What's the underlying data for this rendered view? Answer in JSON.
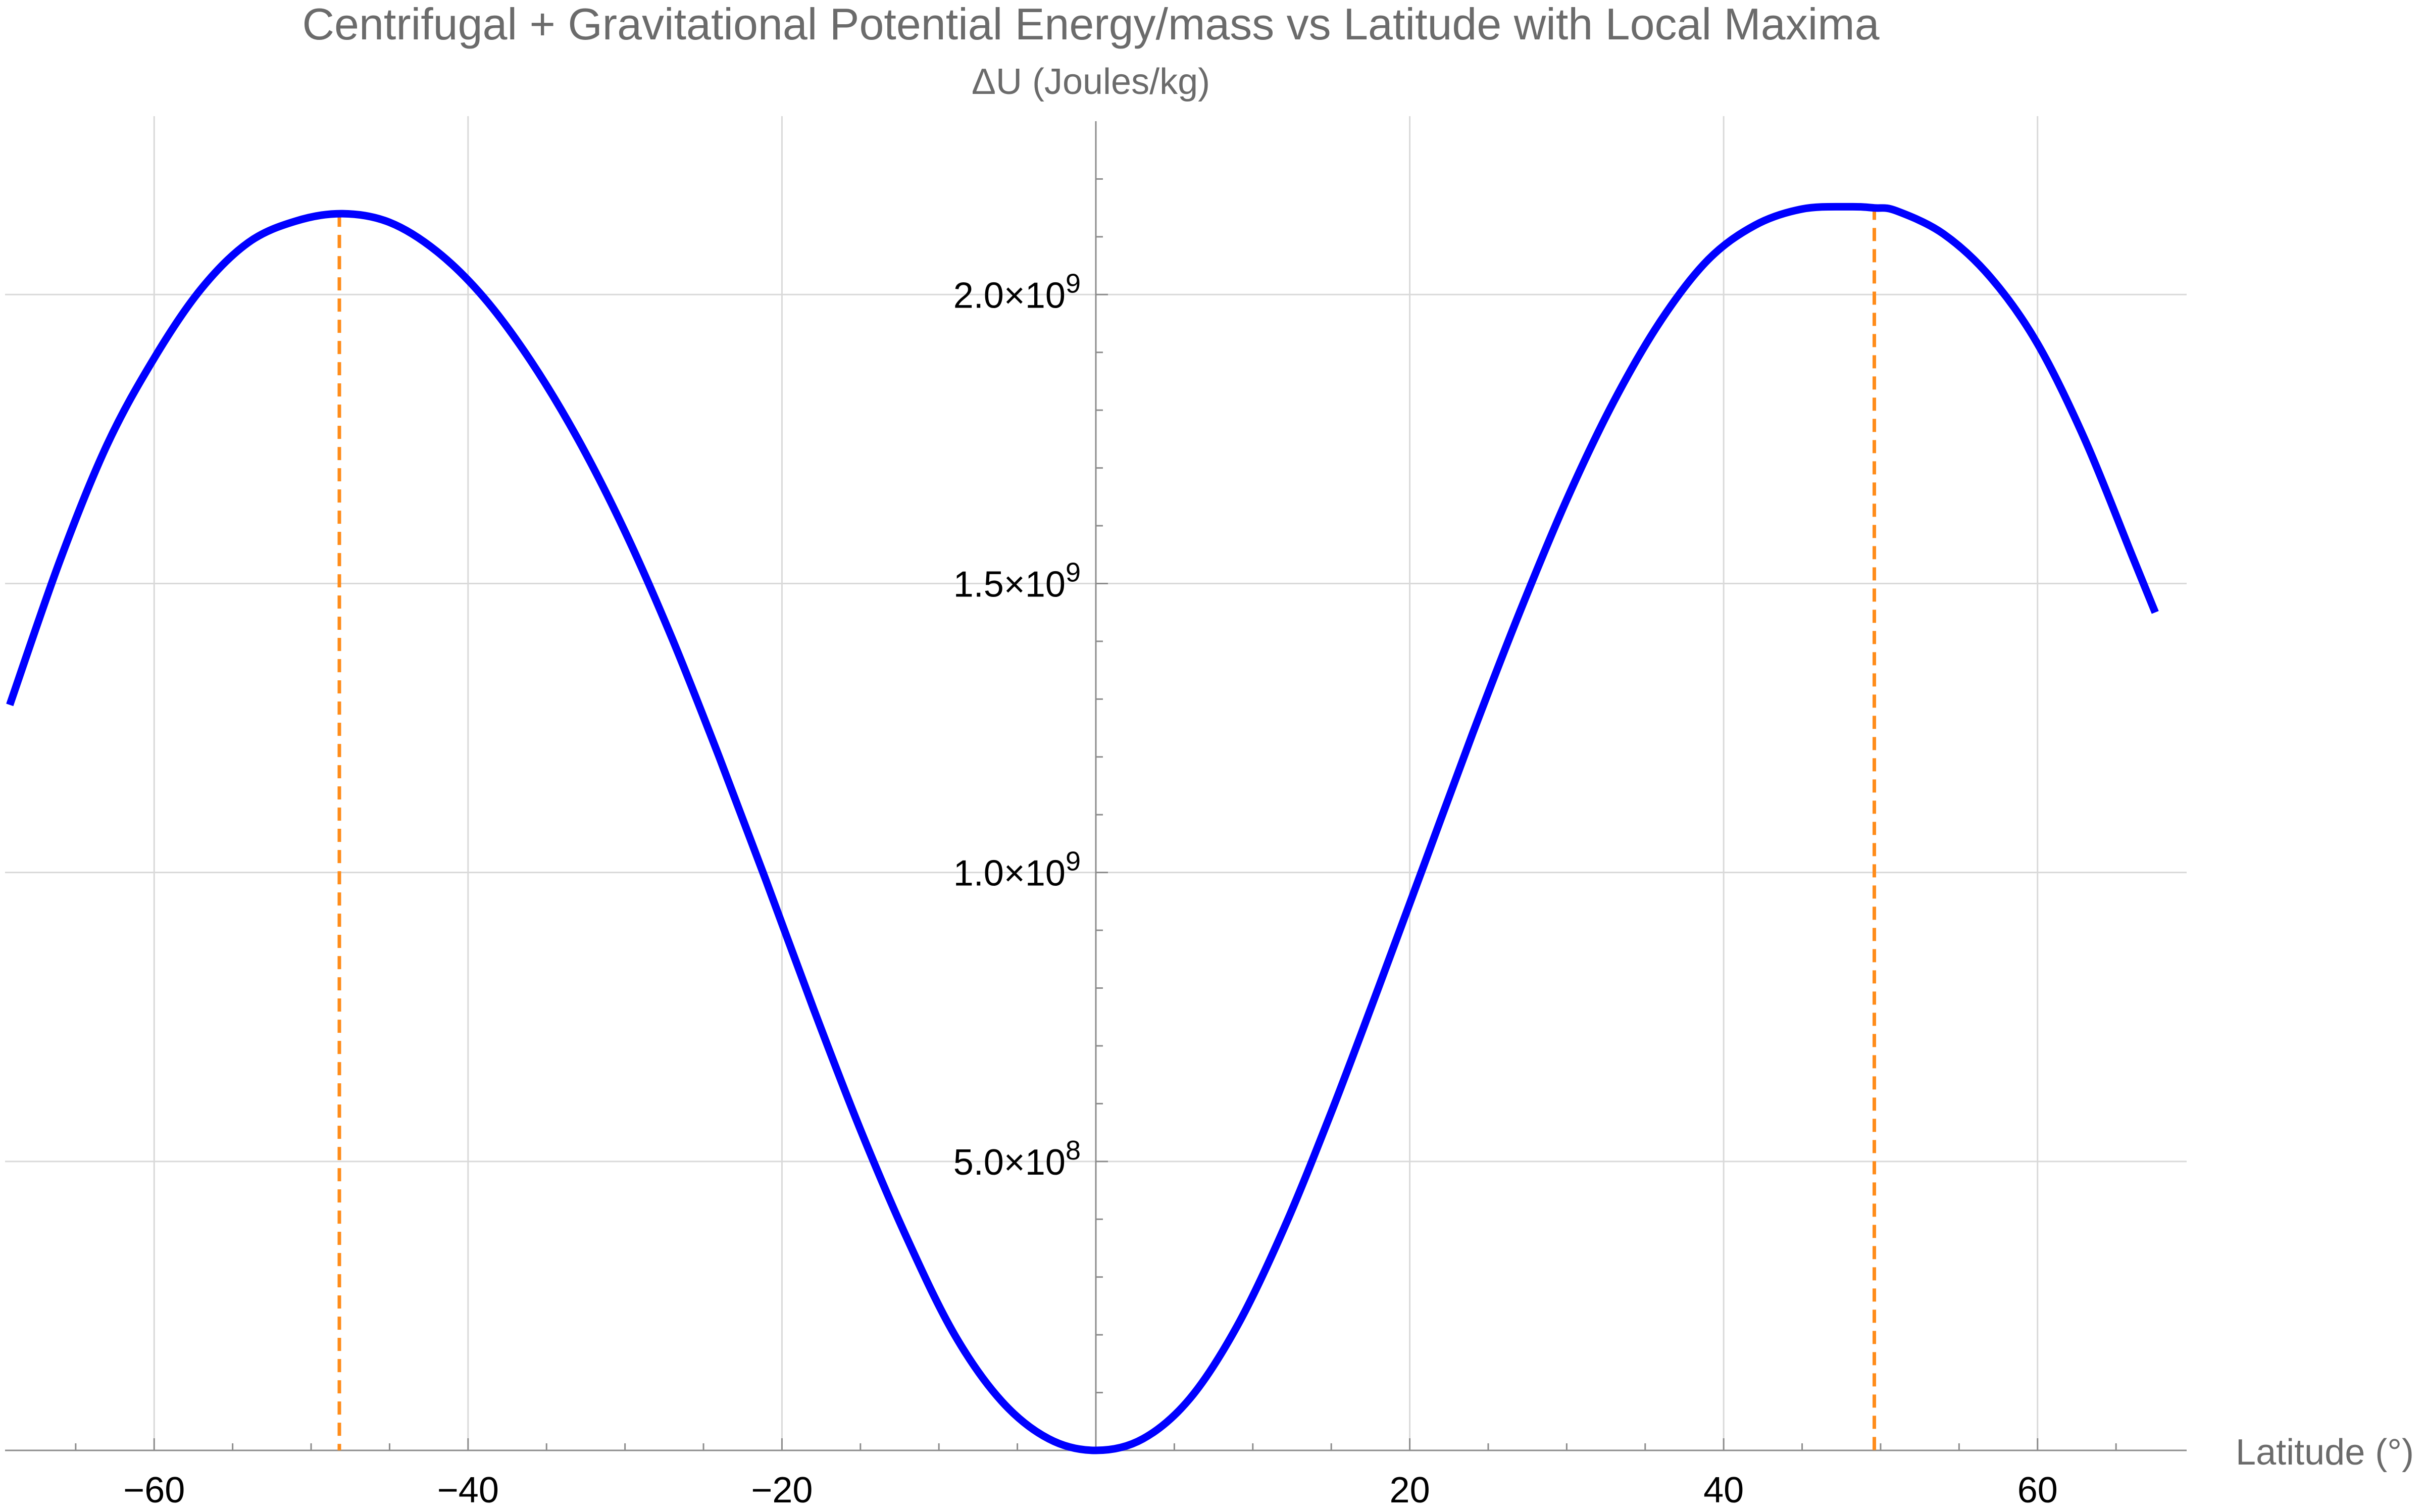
{
  "chart_data": {
    "type": "line",
    "title": "Centrifugal + Gravitational Potential Energy/mass vs Latitude with Local Maxima",
    "ylabel": "ΔU (Joules/kg)",
    "xlabel": "Latitude (°)",
    "xlim": [
      -69.5,
      69.5
    ],
    "ylim": [
      0,
      2300000000.0
    ],
    "x_ticks": [
      -60,
      -40,
      -20,
      20,
      40,
      60
    ],
    "x_tick_labels": [
      "−60",
      "−40",
      "−20",
      "20",
      "40",
      "60"
    ],
    "y_ticks": [
      {
        "value": 500000000.0,
        "mantissa": "5.0",
        "times": "×10",
        "exponent": "8"
      },
      {
        "value": 1000000000.0,
        "mantissa": "1.0",
        "times": "×10",
        "exponent": "9"
      },
      {
        "value": 1500000000.0,
        "mantissa": "1.5",
        "times": "×10",
        "exponent": "9"
      },
      {
        "value": 2000000000.0,
        "mantissa": "2.0",
        "times": "×10",
        "exponent": "9"
      }
    ],
    "grid": true,
    "series": [
      {
        "color": "#0000ff",
        "x": [
          -69.2,
          -66,
          -63,
          -60,
          -57,
          -54,
          -51,
          -48,
          -45,
          -42,
          -39,
          -36,
          -33,
          -30,
          -27,
          -24,
          -21,
          -18,
          -15,
          -12,
          -9,
          -6,
          -3,
          0,
          3,
          6,
          9,
          12,
          15,
          18,
          21,
          24,
          27,
          30,
          33,
          36,
          39,
          42,
          45,
          48,
          49.6,
          51,
          54,
          57,
          60,
          63,
          66,
          67.5
        ],
        "y": [
          1290000000.0,
          1540000000.0,
          1740000000.0,
          1890000000.0,
          2010000000.0,
          2090000000.0,
          2127000000.0,
          2140000000.0,
          2125000000.0,
          2075000000.0,
          1995000000.0,
          1885000000.0,
          1750000000.0,
          1590000000.0,
          1405000000.0,
          1200000000.0,
          985000000.0,
          765000000.0,
          555000000.0,
          365000000.0,
          200000000.0,
          85000000.0,
          20000000.0,
          0.0,
          20000000.0,
          90000000.0,
          215000000.0,
          385000000.0,
          585000000.0,
          800000000.0,
          1020000000.0,
          1240000000.0,
          1450000000.0,
          1645000000.0,
          1815000000.0,
          1955000000.0,
          2060000000.0,
          2120000000.0,
          2148000000.0,
          2152000000.0,
          2150000000.0,
          2145000000.0,
          2105000000.0,
          2030000000.0,
          1915000000.0,
          1750000000.0,
          1550000000.0,
          1450000000.0
        ]
      }
    ],
    "maxima": [
      {
        "x": -48.2,
        "y": 2140000000.0,
        "color": "#ff8c1a"
      },
      {
        "x": 49.6,
        "y": 2152000000.0,
        "color": "#ff8c1a"
      }
    ]
  }
}
